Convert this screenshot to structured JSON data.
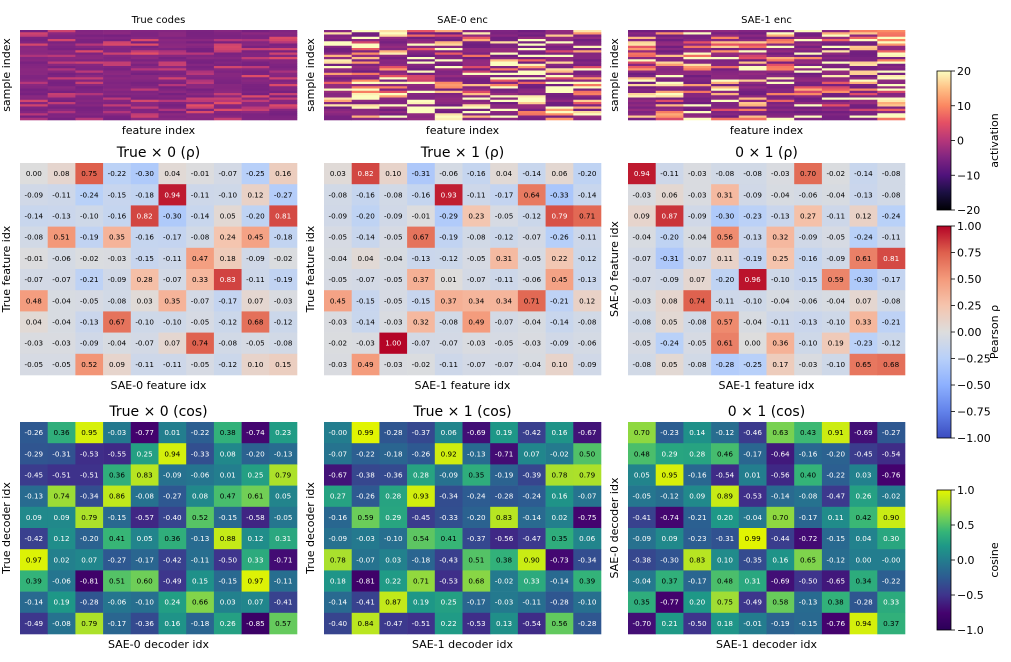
{
  "chart_data": [
    {
      "type": "heatmap",
      "panel": "true-codes",
      "title": "True codes",
      "xlabel": "feature index",
      "ylabel": "sample index",
      "colorbar": "activation"
    },
    {
      "type": "heatmap",
      "panel": "sae0-enc",
      "title": "SAE-0 enc",
      "xlabel": "feature index",
      "ylabel": "sample index",
      "colorbar": "activation"
    },
    {
      "type": "heatmap",
      "panel": "sae1-enc",
      "title": "SAE-1 enc",
      "xlabel": "feature index",
      "ylabel": "sample index",
      "colorbar": "activation"
    },
    {
      "type": "heatmap",
      "panel": "rho-true-0",
      "title": "True × 0 (ρ)",
      "xlabel": "SAE-0 feature idx",
      "ylabel": "True feature idx",
      "colorbar": "pearson",
      "values": [
        [
          "0.00",
          "0.08",
          "0.75",
          "-0.22",
          "-0.30",
          "0.04",
          "-0.01",
          "-0.07",
          "-0.25",
          "0.16"
        ],
        [
          "-0.09",
          "-0.11",
          "-0.24",
          "-0.15",
          "-0.18",
          "0.94",
          "-0.11",
          "-0.10",
          "0.12",
          "-0.27"
        ],
        [
          "-0.14",
          "-0.13",
          "-0.10",
          "-0.16",
          "0.82",
          "-0.30",
          "-0.14",
          "0.05",
          "-0.20",
          "0.81"
        ],
        [
          "-0.08",
          "0.51",
          "-0.19",
          "0.35",
          "-0.16",
          "-0.17",
          "-0.08",
          "0.24",
          "0.45",
          "-0.18"
        ],
        [
          "-0.01",
          "-0.06",
          "-0.02",
          "-0.03",
          "-0.15",
          "-0.11",
          "0.47",
          "0.18",
          "-0.09",
          "-0.02"
        ],
        [
          "-0.07",
          "-0.07",
          "-0.21",
          "-0.09",
          "0.28",
          "-0.07",
          "0.33",
          "0.83",
          "-0.11",
          "-0.19"
        ],
        [
          "0.48",
          "-0.04",
          "-0.05",
          "-0.08",
          "0.03",
          "0.35",
          "-0.07",
          "-0.17",
          "0.07",
          "-0.03"
        ],
        [
          "0.04",
          "-0.04",
          "-0.13",
          "0.67",
          "-0.10",
          "-0.10",
          "-0.05",
          "-0.12",
          "0.68",
          "-0.12"
        ],
        [
          "-0.03",
          "-0.03",
          "-0.09",
          "-0.04",
          "-0.07",
          "0.07",
          "0.74",
          "-0.08",
          "-0.05",
          "-0.08"
        ],
        [
          "-0.05",
          "-0.05",
          "0.52",
          "0.09",
          "-0.11",
          "-0.11",
          "-0.05",
          "-0.12",
          "0.10",
          "0.15"
        ]
      ]
    },
    {
      "type": "heatmap",
      "panel": "rho-true-1",
      "title": "True × 1 (ρ)",
      "xlabel": "SAE-1 feature idx",
      "ylabel": "True feature idx",
      "colorbar": "pearson",
      "values": [
        [
          "0.03",
          "0.82",
          "0.10",
          "-0.31",
          "-0.06",
          "-0.16",
          "0.04",
          "-0.14",
          "0.06",
          "-0.20"
        ],
        [
          "-0.08",
          "-0.16",
          "-0.08",
          "-0.16",
          "0.93",
          "-0.11",
          "-0.17",
          "0.64",
          "-0.33",
          "-0.14"
        ],
        [
          "-0.09",
          "-0.20",
          "-0.09",
          "-0.01",
          "-0.29",
          "0.23",
          "-0.05",
          "-0.12",
          "0.79",
          "0.71"
        ],
        [
          "-0.05",
          "-0.14",
          "-0.05",
          "0.67",
          "-0.19",
          "-0.08",
          "-0.12",
          "-0.07",
          "-0.26",
          "-0.11"
        ],
        [
          "-0.04",
          "0.04",
          "-0.04",
          "-0.13",
          "-0.12",
          "-0.05",
          "0.31",
          "-0.05",
          "0.22",
          "-0.12"
        ],
        [
          "-0.05",
          "-0.07",
          "-0.05",
          "0.37",
          "0.01",
          "-0.07",
          "-0.11",
          "-0.06",
          "0.45",
          "-0.13"
        ],
        [
          "0.45",
          "-0.15",
          "-0.05",
          "-0.15",
          "0.37",
          "0.34",
          "0.34",
          "0.71",
          "-0.21",
          "0.12"
        ],
        [
          "-0.03",
          "-0.14",
          "-0.03",
          "0.32",
          "-0.08",
          "0.49",
          "-0.07",
          "-0.04",
          "-0.14",
          "-0.08"
        ],
        [
          "-0.02",
          "-0.03",
          "1.00",
          "-0.07",
          "-0.07",
          "-0.03",
          "-0.05",
          "-0.03",
          "-0.09",
          "-0.06"
        ],
        [
          "-0.03",
          "0.49",
          "-0.03",
          "-0.02",
          "-0.11",
          "-0.07",
          "-0.07",
          "-0.04",
          "0.10",
          "-0.09"
        ]
      ]
    },
    {
      "type": "heatmap",
      "panel": "rho-0-1",
      "title": "0 × 1 (ρ)",
      "xlabel": "SAE-1 feature idx",
      "ylabel": "SAE-0 feature idx",
      "colorbar": "pearson",
      "values": [
        [
          "0.94",
          "-0.11",
          "-0.03",
          "-0.08",
          "-0.08",
          "-0.03",
          "0.70",
          "-0.02",
          "-0.14",
          "-0.08"
        ],
        [
          "-0.03",
          "0.06",
          "-0.03",
          "0.31",
          "-0.09",
          "-0.04",
          "-0.06",
          "-0.04",
          "-0.13",
          "-0.08"
        ],
        [
          "0.09",
          "0.87",
          "-0.09",
          "-0.30",
          "-0.23",
          "-0.13",
          "0.27",
          "-0.11",
          "0.12",
          "-0.24"
        ],
        [
          "-0.04",
          "-0.20",
          "-0.04",
          "0.56",
          "-0.13",
          "0.32",
          "-0.09",
          "-0.05",
          "-0.24",
          "-0.11"
        ],
        [
          "-0.07",
          "-0.31",
          "-0.07",
          "0.11",
          "-0.19",
          "0.25",
          "-0.16",
          "-0.09",
          "0.61",
          "0.81"
        ],
        [
          "-0.07",
          "-0.09",
          "0.07",
          "-0.20",
          "0.96",
          "-0.10",
          "-0.15",
          "0.59",
          "-0.30",
          "-0.17"
        ],
        [
          "-0.03",
          "0.08",
          "0.74",
          "-0.11",
          "-0.10",
          "-0.04",
          "-0.06",
          "-0.04",
          "0.07",
          "-0.08"
        ],
        [
          "-0.08",
          "0.05",
          "-0.08",
          "0.57",
          "-0.04",
          "-0.11",
          "-0.13",
          "-0.10",
          "0.33",
          "-0.21"
        ],
        [
          "-0.05",
          "-0.24",
          "-0.05",
          "0.61",
          "0.00",
          "0.36",
          "-0.10",
          "0.19",
          "-0.23",
          "-0.12"
        ],
        [
          "-0.08",
          "0.05",
          "-0.08",
          "-0.28",
          "-0.25",
          "0.17",
          "-0.03",
          "-0.10",
          "0.65",
          "0.68"
        ]
      ]
    },
    {
      "type": "heatmap",
      "panel": "cos-true-0",
      "title": "True × 0 (cos)",
      "xlabel": "SAE-0 decoder idx",
      "ylabel": "True decoder idx",
      "colorbar": "cosine",
      "values": [
        [
          "-0.26",
          "0.36",
          "0.95",
          "-0.03",
          "-0.77",
          "0.01",
          "-0.22",
          "0.38",
          "-0.74",
          "0.23"
        ],
        [
          "-0.29",
          "-0.31",
          "-0.53",
          "-0.55",
          "0.25",
          "0.94",
          "-0.33",
          "0.08",
          "-0.20",
          "-0.13"
        ],
        [
          "-0.45",
          "-0.51",
          "-0.51",
          "0.36",
          "0.83",
          "-0.09",
          "-0.06",
          "0.01",
          "0.25",
          "0.79"
        ],
        [
          "-0.13",
          "0.74",
          "-0.34",
          "0.86",
          "-0.08",
          "-0.27",
          "0.08",
          "0.47",
          "0.61",
          "0.05"
        ],
        [
          "0.09",
          "0.09",
          "0.79",
          "-0.15",
          "-0.57",
          "-0.40",
          "0.52",
          "-0.15",
          "-0.58",
          "-0.05"
        ],
        [
          "-0.42",
          "0.12",
          "-0.20",
          "0.41",
          "0.05",
          "0.36",
          "-0.13",
          "0.88",
          "0.12",
          "0.31"
        ],
        [
          "0.97",
          "0.02",
          "0.07",
          "-0.27",
          "-0.17",
          "-0.42",
          "-0.11",
          "-0.50",
          "0.33",
          "-0.71"
        ],
        [
          "0.39",
          "-0.06",
          "-0.81",
          "0.51",
          "0.60",
          "-0.49",
          "0.15",
          "-0.15",
          "0.97",
          "-0.11"
        ],
        [
          "-0.14",
          "0.19",
          "-0.28",
          "-0.06",
          "-0.10",
          "0.24",
          "0.66",
          "0.03",
          "0.07",
          "-0.41"
        ],
        [
          "-0.49",
          "-0.08",
          "0.79",
          "-0.17",
          "-0.36",
          "0.16",
          "-0.18",
          "0.26",
          "-0.85",
          "0.57"
        ]
      ]
    },
    {
      "type": "heatmap",
      "panel": "cos-true-1",
      "title": "True × 1 (cos)",
      "xlabel": "SAE-1 decoder idx",
      "ylabel": "True decoder idx",
      "colorbar": "cosine",
      "values": [
        [
          "-0.00",
          "0.99",
          "-0.28",
          "-0.37",
          "0.06",
          "-0.69",
          "0.19",
          "-0.42",
          "0.16",
          "-0.67"
        ],
        [
          "-0.07",
          "-0.22",
          "-0.18",
          "-0.26",
          "0.92",
          "-0.13",
          "-0.71",
          "0.07",
          "-0.02",
          "0.50"
        ],
        [
          "-0.67",
          "-0.38",
          "-0.36",
          "0.28",
          "-0.09",
          "0.35",
          "-0.19",
          "-0.39",
          "0.78",
          "0.79"
        ],
        [
          "0.27",
          "-0.26",
          "0.28",
          "0.93",
          "-0.34",
          "-0.24",
          "-0.28",
          "-0.24",
          "0.16",
          "-0.07"
        ],
        [
          "-0.16",
          "0.59",
          "0.29",
          "-0.45",
          "-0.33",
          "-0.20",
          "0.83",
          "-0.14",
          "0.02",
          "-0.75"
        ],
        [
          "-0.09",
          "-0.03",
          "-0.10",
          "0.54",
          "0.41",
          "-0.37",
          "-0.56",
          "-0.47",
          "0.35",
          "0.06"
        ],
        [
          "0.78",
          "-0.07",
          "0.03",
          "-0.18",
          "-0.43",
          "0.51",
          "0.38",
          "0.90",
          "-0.73",
          "-0.34"
        ],
        [
          "0.18",
          "-0.81",
          "0.22",
          "0.71",
          "-0.53",
          "0.68",
          "-0.02",
          "0.33",
          "-0.14",
          "0.39"
        ],
        [
          "-0.14",
          "-0.41",
          "0.87",
          "0.19",
          "0.25",
          "-0.17",
          "-0.03",
          "-0.11",
          "-0.28",
          "-0.10"
        ],
        [
          "-0.40",
          "0.84",
          "-0.47",
          "-0.51",
          "0.22",
          "-0.53",
          "0.13",
          "-0.54",
          "0.56",
          "-0.28"
        ]
      ]
    },
    {
      "type": "heatmap",
      "panel": "cos-0-1",
      "title": "0 × 1 (cos)",
      "xlabel": "SAE-1 decoder idx",
      "ylabel": "SAE-0 decoder idx",
      "colorbar": "cosine",
      "values": [
        [
          "0.70",
          "-0.23",
          "0.14",
          "-0.12",
          "-0.46",
          "0.63",
          "0.43",
          "0.91",
          "-0.69",
          "-0.27"
        ],
        [
          "0.48",
          "0.29",
          "0.28",
          "0.46",
          "-0.17",
          "-0.64",
          "-0.16",
          "-0.20",
          "-0.45",
          "-0.54"
        ],
        [
          "0.05",
          "0.95",
          "-0.16",
          "-0.54",
          "0.01",
          "-0.56",
          "0.40",
          "-0.22",
          "0.03",
          "-0.76"
        ],
        [
          "-0.05",
          "-0.12",
          "0.09",
          "0.89",
          "-0.53",
          "-0.14",
          "-0.08",
          "-0.47",
          "0.26",
          "-0.02"
        ],
        [
          "-0.41",
          "-0.74",
          "-0.21",
          "0.20",
          "-0.04",
          "0.70",
          "-0.17",
          "0.11",
          "0.42",
          "0.90"
        ],
        [
          "-0.09",
          "0.09",
          "-0.23",
          "-0.31",
          "0.99",
          "-0.44",
          "-0.72",
          "-0.15",
          "0.04",
          "0.30"
        ],
        [
          "-0.38",
          "-0.30",
          "0.83",
          "0.10",
          "-0.35",
          "0.16",
          "0.65",
          "-0.12",
          "0.00",
          "-0.00"
        ],
        [
          "-0.04",
          "0.37",
          "-0.17",
          "0.48",
          "0.31",
          "-0.69",
          "-0.50",
          "-0.65",
          "0.34",
          "-0.22"
        ],
        [
          "0.35",
          "-0.77",
          "0.20",
          "0.75",
          "-0.49",
          "0.58",
          "-0.13",
          "0.38",
          "-0.28",
          "0.33"
        ],
        [
          "-0.70",
          "0.21",
          "-0.50",
          "0.18",
          "-0.01",
          "-0.19",
          "-0.15",
          "-0.76",
          "0.94",
          "0.37"
        ]
      ]
    }
  ],
  "colorbars": {
    "activation": {
      "label": "activation",
      "ticks": [
        "20",
        "10",
        "0",
        "−10",
        "−20"
      ],
      "range": [
        -20,
        20
      ],
      "tick_values": [
        20,
        10,
        0,
        -10,
        -20
      ]
    },
    "pearson": {
      "label": "Pearson ρ",
      "ticks": [
        "1.00",
        "0.75",
        "0.50",
        "0.25",
        "0.00",
        "−0.25",
        "−0.50",
        "−0.75",
        "−1.00"
      ],
      "range": [
        -1,
        1
      ],
      "tick_values": [
        1,
        0.75,
        0.5,
        0.25,
        0,
        -0.25,
        -0.5,
        -0.75,
        -1
      ]
    },
    "cosine": {
      "label": "cosine",
      "ticks": [
        "1.0",
        "0.5",
        "0.0",
        "−0.5",
        "−1.0"
      ],
      "range": [
        -1,
        1
      ],
      "tick_values": [
        1,
        0.5,
        0,
        -0.5,
        -1
      ]
    }
  }
}
